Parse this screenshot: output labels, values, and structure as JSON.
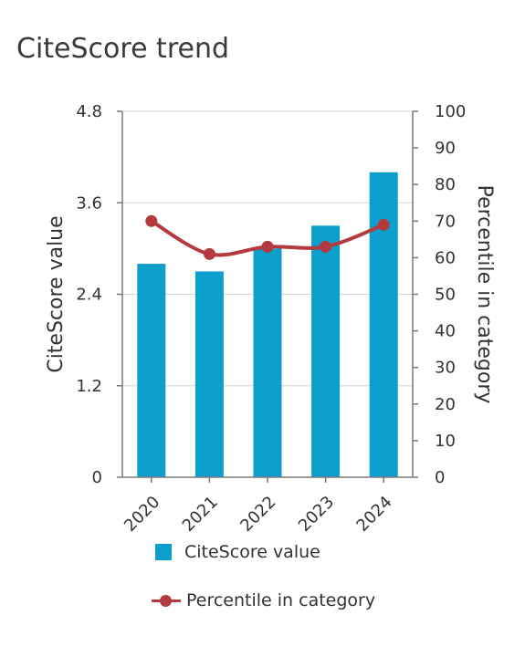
{
  "title": "CiteScore trend",
  "colors": {
    "bar": "#0c9fcb",
    "line": "#b53a3f",
    "axis": "#7a7a7a",
    "grid": "#d4d4d4"
  },
  "legend": {
    "bar_label": "CiteScore value",
    "line_label": "Percentile in category"
  },
  "chart_data": {
    "type": "bar",
    "title": "CiteScore trend",
    "categories": [
      "2020",
      "2021",
      "2022",
      "2023",
      "2024"
    ],
    "series": [
      {
        "name": "CiteScore value",
        "type": "bar",
        "axis": "left",
        "values": [
          2.8,
          2.7,
          3.0,
          3.3,
          4.0
        ]
      },
      {
        "name": "Percentile in category",
        "type": "line",
        "axis": "right",
        "values": [
          70,
          61,
          63,
          63,
          69
        ]
      }
    ],
    "ylabel": "CiteScore value",
    "y2label": "Percentile in category",
    "ylim": [
      0,
      4.8
    ],
    "y2lim": [
      0,
      100
    ],
    "yticks": [
      "0",
      "1.2",
      "2.4",
      "3.6",
      "4.8"
    ],
    "y2ticks": [
      "0",
      "10",
      "20",
      "30",
      "40",
      "50",
      "60",
      "70",
      "80",
      "90",
      "100"
    ],
    "grid": true,
    "legend_position": "bottom"
  }
}
